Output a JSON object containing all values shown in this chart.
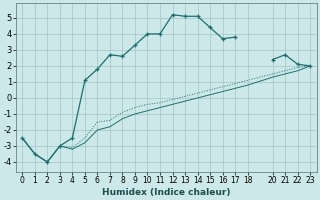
{
  "xlabel": "Humidex (Indice chaleur)",
  "ylabel": "",
  "background_color": "#cce8e8",
  "grid_color": "#aacaca",
  "line_color": "#1a7070",
  "xlim": [
    -0.5,
    23.5
  ],
  "ylim": [
    -4.6,
    5.9
  ],
  "xticks": [
    0,
    1,
    2,
    3,
    4,
    5,
    6,
    7,
    8,
    9,
    10,
    11,
    12,
    13,
    14,
    15,
    16,
    17,
    18,
    20,
    21,
    22,
    23
  ],
  "yticks": [
    -4,
    -3,
    -2,
    -1,
    0,
    1,
    2,
    3,
    4,
    5
  ],
  "line_marked_x": [
    0,
    1,
    2,
    3,
    4,
    5,
    6,
    7,
    8,
    9,
    10,
    11,
    12,
    13,
    14,
    15,
    16,
    17,
    20,
    21,
    22,
    23
  ],
  "line_marked_y": [
    -2.5,
    -3.5,
    -4.0,
    -3.0,
    -2.5,
    1.1,
    1.8,
    2.7,
    2.6,
    3.3,
    4.0,
    4.0,
    5.2,
    5.1,
    5.1,
    4.4,
    3.7,
    3.8,
    2.4,
    2.7,
    2.1,
    2.0
  ],
  "line_dotted_x": [
    0,
    1,
    2,
    3,
    4,
    5,
    6,
    7,
    8,
    9,
    10,
    11,
    12,
    13,
    14,
    15,
    16,
    17,
    18,
    20,
    21,
    22,
    23
  ],
  "line_dotted_y": [
    -2.5,
    -3.5,
    -4.0,
    -3.0,
    -3.1,
    -2.5,
    -1.5,
    -1.4,
    -0.9,
    -0.6,
    -0.4,
    -0.3,
    -0.1,
    0.1,
    0.3,
    0.5,
    0.7,
    0.9,
    1.1,
    1.5,
    1.7,
    1.9,
    2.0
  ],
  "line_solid_x": [
    0,
    1,
    2,
    3,
    4,
    5,
    6,
    7,
    8,
    9,
    10,
    11,
    12,
    13,
    14,
    15,
    16,
    17,
    18,
    20,
    21,
    22,
    23
  ],
  "line_solid_y": [
    -2.5,
    -3.5,
    -4.0,
    -3.0,
    -3.2,
    -2.8,
    -2.0,
    -1.8,
    -1.3,
    -1.0,
    -0.8,
    -0.6,
    -0.4,
    -0.2,
    0.0,
    0.2,
    0.4,
    0.6,
    0.8,
    1.3,
    1.5,
    1.7,
    2.0
  ]
}
